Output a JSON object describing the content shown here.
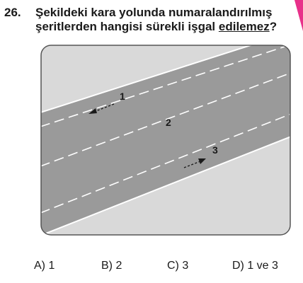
{
  "question": {
    "number": "26.",
    "text_before": "Şekildeki kara yolunda numaralandırılmış şeritlerden hangisi sürekli işgal ",
    "text_underlined": "edilemez",
    "text_after": "?"
  },
  "figure": {
    "lane_labels": [
      "1",
      "2",
      "3"
    ],
    "road_color": "#9a9a9a",
    "shoulder_color": "#d9d9d9",
    "marking_color": "#ffffff",
    "arrow_color": "#1a1a1a",
    "corner_mark_color": "#e8308a"
  },
  "options": [
    {
      "label": "A) 1"
    },
    {
      "label": "B) 2"
    },
    {
      "label": "C) 3"
    },
    {
      "label": "D) 1 ve 3"
    }
  ]
}
